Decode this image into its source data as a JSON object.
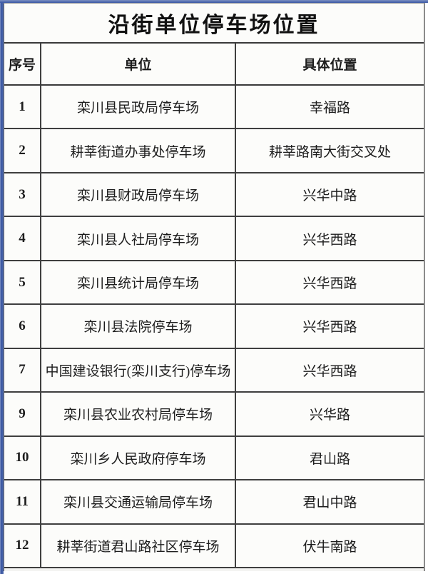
{
  "table": {
    "title": "沿街单位停车场位置",
    "columns": {
      "no": "序号",
      "unit": "单位",
      "location": "具体位置"
    },
    "rows": [
      {
        "no": "1",
        "unit": "栾川县民政局停车场",
        "location": "幸福路"
      },
      {
        "no": "2",
        "unit": "耕莘街道办事处停车场",
        "location": "耕莘路南大街交叉处"
      },
      {
        "no": "3",
        "unit": "栾川县财政局停车场",
        "location": "兴华中路"
      },
      {
        "no": "4",
        "unit": "栾川县人社局停车场",
        "location": "兴华西路"
      },
      {
        "no": "5",
        "unit": "栾川县统计局停车场",
        "location": "兴华西路"
      },
      {
        "no": "6",
        "unit": "栾川县法院停车场",
        "location": "兴华西路"
      },
      {
        "no": "7",
        "unit": "中国建设银行(栾川支行)停车场",
        "location": "兴华西路"
      },
      {
        "no": "9",
        "unit": "栾川县农业农村局停车场",
        "location": "兴华路"
      },
      {
        "no": "10",
        "unit": "栾川乡人民政府停车场",
        "location": "君山路"
      },
      {
        "no": "11",
        "unit": "栾川县交通运输局停车场",
        "location": "君山中路"
      },
      {
        "no": "12",
        "unit": "耕莘街道君山路社区停车场",
        "location": "伏牛南路"
      }
    ]
  },
  "colors": {
    "frame_blue": "#33519e",
    "border_dark": "#3f3f3f",
    "paper": "#fcfcfa",
    "text": "#1d1d1d"
  }
}
